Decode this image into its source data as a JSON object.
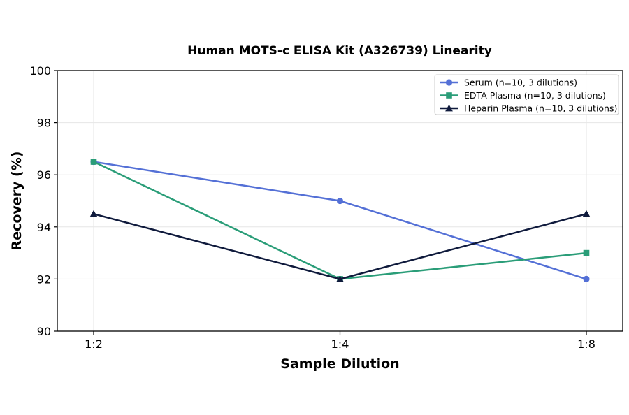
{
  "chart_data": {
    "type": "line",
    "title": "Human MOTS-c ELISA Kit (A326739) Linearity",
    "xlabel": "Sample Dilution",
    "ylabel": "Recovery (%)",
    "categories": [
      "1:2",
      "1:4",
      "1:8"
    ],
    "ylim": [
      90,
      100
    ],
    "yticks": [
      90,
      92,
      94,
      96,
      98,
      100
    ],
    "grid": true,
    "legend_position": "top-right",
    "series": [
      {
        "name": "Serum (n=10, 3 dilutions)",
        "values": [
          96.5,
          95.0,
          92.0
        ],
        "color": "#5470d6",
        "marker": "circle"
      },
      {
        "name": "EDTA Plasma (n=10, 3 dilutions)",
        "values": [
          96.5,
          92.0,
          93.0
        ],
        "color": "#2a9d78",
        "marker": "square"
      },
      {
        "name": "Heparin Plasma (n=10, 3 dilutions)",
        "values": [
          94.5,
          92.0,
          94.5
        ],
        "color": "#0f1a3c",
        "marker": "triangle"
      }
    ]
  }
}
